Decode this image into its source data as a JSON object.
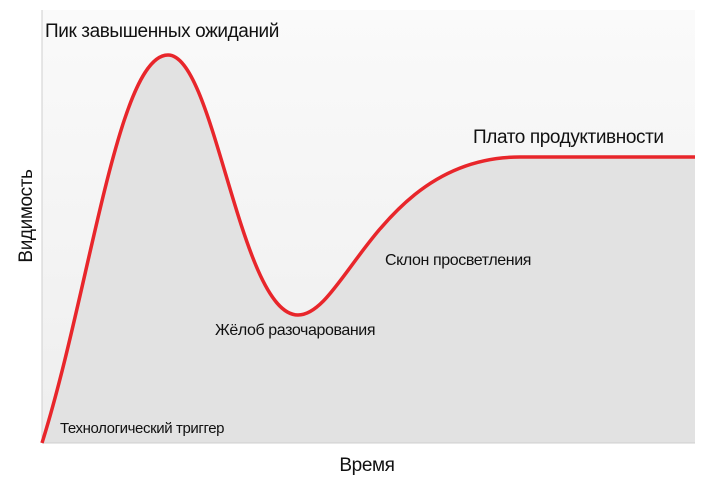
{
  "axes": {
    "x_label": "Время",
    "y_label": "Видимость"
  },
  "phases": [
    {
      "label": "Технологический триггер"
    },
    {
      "label": "Пик завышенных ожиданий"
    },
    {
      "label": "Жёлоб разочарования"
    },
    {
      "label": "Склон просветления"
    },
    {
      "label": "Плато продуктивности"
    }
  ]
}
